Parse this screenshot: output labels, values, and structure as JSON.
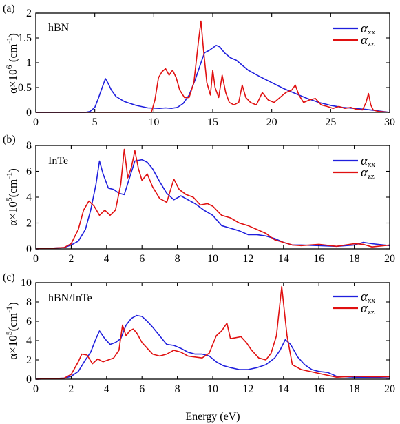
{
  "xlabel": "Energy (eV)",
  "colors": {
    "xx": "#1f1fdd",
    "zz": "#e01010"
  },
  "legend": {
    "alpha": "α",
    "xx_sub": "xx",
    "zz_sub": "zz"
  },
  "chart_data": [
    {
      "type": "line",
      "panel_label": "(a)",
      "material": "hBN",
      "ylabel": {
        "prefix": "α×10",
        "exp": "6",
        "suffix": " (cm",
        "unitexp": "-1",
        "close": ")"
      },
      "xlim": [
        0,
        30
      ],
      "ylim": [
        0,
        2
      ],
      "xticks": [
        "0",
        "5",
        "10",
        "15",
        "20",
        "25",
        "30"
      ],
      "yticks": [
        "0",
        "0.5",
        "1",
        "1.5",
        "2"
      ],
      "series": [
        {
          "name": "αxx",
          "key": "xx",
          "x": [
            0,
            4.2,
            4.6,
            5.0,
            5.3,
            5.6,
            5.9,
            6.1,
            6.4,
            6.8,
            7.5,
            8.5,
            9.5,
            10.5,
            11.0,
            11.5,
            12.0,
            12.5,
            13.0,
            13.5,
            14.0,
            14.3,
            14.7,
            15.0,
            15.3,
            15.6,
            16.0,
            16.5,
            17.0,
            17.5,
            18.0,
            19.0,
            20.0,
            21.0,
            22.0,
            23.0,
            24.0,
            25.0,
            26.0,
            27.0,
            28.0,
            29.0,
            30.0
          ],
          "y": [
            0,
            0,
            0.02,
            0.1,
            0.28,
            0.48,
            0.68,
            0.6,
            0.45,
            0.32,
            0.22,
            0.14,
            0.09,
            0.08,
            0.09,
            0.08,
            0.1,
            0.18,
            0.35,
            0.65,
            1.0,
            1.2,
            1.25,
            1.3,
            1.35,
            1.32,
            1.2,
            1.1,
            1.05,
            0.95,
            0.85,
            0.72,
            0.6,
            0.48,
            0.38,
            0.28,
            0.2,
            0.14,
            0.1,
            0.08,
            0.06,
            0.03,
            0.0
          ]
        },
        {
          "name": "αzz",
          "key": "zz",
          "x": [
            0,
            9.8,
            10.1,
            10.4,
            10.7,
            11.0,
            11.3,
            11.6,
            11.9,
            12.2,
            12.6,
            13.0,
            13.4,
            13.8,
            14.0,
            14.2,
            14.5,
            14.8,
            15.0,
            15.2,
            15.5,
            15.8,
            16.1,
            16.4,
            16.8,
            17.2,
            17.5,
            17.8,
            18.2,
            18.7,
            19.2,
            19.7,
            20.2,
            20.7,
            21.2,
            21.7,
            22.0,
            22.3,
            22.7,
            23.2,
            23.7,
            24.2,
            24.7,
            25.2,
            25.7,
            26.2,
            26.7,
            27.2,
            27.7,
            28.0,
            28.2,
            28.4,
            28.6,
            29.0,
            30.0
          ],
          "y": [
            0,
            0,
            0.25,
            0.7,
            0.82,
            0.88,
            0.75,
            0.85,
            0.7,
            0.45,
            0.3,
            0.3,
            0.6,
            1.45,
            1.84,
            1.3,
            0.6,
            0.35,
            0.85,
            0.5,
            0.3,
            0.75,
            0.4,
            0.2,
            0.15,
            0.2,
            0.55,
            0.3,
            0.2,
            0.15,
            0.4,
            0.25,
            0.2,
            0.3,
            0.4,
            0.45,
            0.55,
            0.35,
            0.2,
            0.25,
            0.28,
            0.15,
            0.12,
            0.08,
            0.12,
            0.08,
            0.1,
            0.06,
            0.05,
            0.2,
            0.38,
            0.15,
            0.05,
            0.02,
            0.0
          ]
        }
      ]
    },
    {
      "type": "line",
      "panel_label": "(b)",
      "material": "InTe",
      "ylabel": {
        "prefix": "α×10",
        "exp": "5",
        "suffix": "(cm",
        "unitexp": "-1",
        "close": ")"
      },
      "xlim": [
        0,
        20
      ],
      "ylim": [
        0,
        8
      ],
      "xticks": [
        "0",
        "2",
        "4",
        "6",
        "8",
        "10",
        "12",
        "14",
        "16",
        "18",
        "20"
      ],
      "yticks": [
        "0",
        "2",
        "4",
        "6",
        "8"
      ],
      "series": [
        {
          "name": "αxx",
          "key": "xx",
          "x": [
            0,
            1.6,
            2.0,
            2.4,
            2.8,
            3.1,
            3.4,
            3.6,
            3.8,
            4.1,
            4.4,
            4.7,
            5.0,
            5.3,
            5.6,
            6.0,
            6.3,
            6.6,
            7.0,
            7.4,
            7.8,
            8.2,
            8.6,
            9.0,
            9.5,
            10.0,
            10.5,
            11.0,
            11.5,
            12.0,
            12.5,
            13.0,
            13.5,
            14.0,
            14.5,
            15.0,
            16.0,
            17.0,
            18.0,
            18.5,
            19.0,
            20.0
          ],
          "y": [
            0,
            0.1,
            0.3,
            0.6,
            1.5,
            3.0,
            5.0,
            6.8,
            5.8,
            4.7,
            4.6,
            4.3,
            4.2,
            5.5,
            6.8,
            6.9,
            6.7,
            6.2,
            5.2,
            4.3,
            3.8,
            4.1,
            3.8,
            3.5,
            3.0,
            2.6,
            1.8,
            1.6,
            1.4,
            1.1,
            1.1,
            1.0,
            0.8,
            0.5,
            0.3,
            0.3,
            0.25,
            0.2,
            0.3,
            0.5,
            0.4,
            0.25
          ]
        },
        {
          "name": "αzz",
          "key": "zz",
          "x": [
            0,
            1.6,
            2.0,
            2.4,
            2.7,
            3.0,
            3.3,
            3.6,
            3.9,
            4.2,
            4.5,
            4.8,
            5.0,
            5.2,
            5.4,
            5.6,
            5.8,
            6.0,
            6.3,
            6.6,
            7.0,
            7.4,
            7.8,
            8.1,
            8.5,
            8.9,
            9.3,
            9.7,
            10.0,
            10.5,
            11.0,
            11.5,
            12.0,
            12.5,
            13.0,
            13.5,
            14.0,
            14.5,
            15.0,
            16.0,
            17.0,
            18.0,
            18.5,
            19.0,
            20.0
          ],
          "y": [
            0,
            0.1,
            0.4,
            1.5,
            3.0,
            3.7,
            3.3,
            2.6,
            3.0,
            2.6,
            3.0,
            5.0,
            7.7,
            5.5,
            6.3,
            7.6,
            6.2,
            5.3,
            5.8,
            4.8,
            3.9,
            3.6,
            5.4,
            4.6,
            4.2,
            4.0,
            3.4,
            3.5,
            3.3,
            2.6,
            2.4,
            2.0,
            1.8,
            1.5,
            1.2,
            0.7,
            0.5,
            0.3,
            0.25,
            0.35,
            0.2,
            0.4,
            0.35,
            0.15,
            0.3
          ]
        }
      ]
    },
    {
      "type": "line",
      "panel_label": "(c)",
      "material": "hBN/InTe",
      "ylabel": {
        "prefix": "α×10",
        "exp": "5",
        "suffix": "(cm",
        "unitexp": "-1",
        "close": ")"
      },
      "xlim": [
        0,
        20
      ],
      "ylim": [
        0,
        10
      ],
      "xticks": [
        "0",
        "2",
        "4",
        "6",
        "8",
        "10",
        "12",
        "14",
        "16",
        "18",
        "20"
      ],
      "yticks": [
        "0",
        "2",
        "4",
        "6",
        "8",
        "10"
      ],
      "series": [
        {
          "name": "αxx",
          "key": "xx",
          "x": [
            0,
            1.6,
            2.0,
            2.4,
            2.8,
            3.1,
            3.4,
            3.6,
            3.9,
            4.2,
            4.5,
            4.8,
            5.1,
            5.4,
            5.7,
            6.0,
            6.3,
            6.6,
            7.0,
            7.4,
            7.8,
            8.2,
            8.6,
            9.0,
            9.4,
            9.8,
            10.2,
            10.6,
            11.0,
            11.5,
            12.0,
            12.5,
            13.0,
            13.5,
            13.8,
            14.1,
            14.4,
            14.8,
            15.2,
            15.6,
            16.0,
            16.5,
            17.0,
            18.0,
            19.0,
            20.0
          ],
          "y": [
            0,
            0.1,
            0.3,
            0.8,
            2.0,
            2.8,
            4.2,
            5.0,
            4.2,
            3.6,
            3.8,
            4.2,
            5.6,
            6.3,
            6.6,
            6.5,
            6.0,
            5.4,
            4.5,
            3.6,
            3.5,
            3.2,
            2.8,
            2.6,
            2.6,
            2.4,
            1.8,
            1.4,
            1.2,
            1.0,
            1.0,
            1.2,
            1.5,
            2.2,
            3.0,
            4.1,
            3.6,
            2.3,
            1.5,
            1.0,
            0.8,
            0.7,
            0.3,
            0.2,
            0.2,
            0.1
          ]
        },
        {
          "name": "αzz",
          "key": "zz",
          "x": [
            0,
            1.6,
            2.0,
            2.4,
            2.6,
            2.9,
            3.2,
            3.5,
            3.8,
            4.1,
            4.4,
            4.7,
            4.9,
            5.1,
            5.3,
            5.5,
            5.7,
            6.0,
            6.3,
            6.6,
            7.0,
            7.4,
            7.8,
            8.2,
            8.6,
            9.0,
            9.4,
            9.8,
            10.2,
            10.5,
            10.8,
            11.0,
            11.3,
            11.6,
            11.9,
            12.2,
            12.6,
            13.0,
            13.3,
            13.6,
            13.9,
            14.2,
            14.5,
            15.0,
            16.0,
            17.0,
            18.0,
            19.0,
            20.0
          ],
          "y": [
            0,
            0.1,
            0.5,
            1.8,
            2.6,
            2.5,
            1.6,
            2.1,
            1.8,
            2.0,
            2.2,
            3.0,
            5.6,
            4.5,
            5.0,
            5.2,
            4.8,
            3.8,
            3.2,
            2.6,
            2.4,
            2.6,
            3.0,
            2.8,
            2.4,
            2.3,
            2.2,
            2.7,
            4.5,
            5.0,
            5.8,
            4.2,
            4.3,
            4.4,
            3.8,
            3.0,
            2.2,
            2.0,
            2.7,
            4.5,
            9.6,
            4.5,
            1.5,
            1.0,
            0.6,
            0.2,
            0.3,
            0.25,
            0.25
          ]
        }
      ]
    }
  ]
}
